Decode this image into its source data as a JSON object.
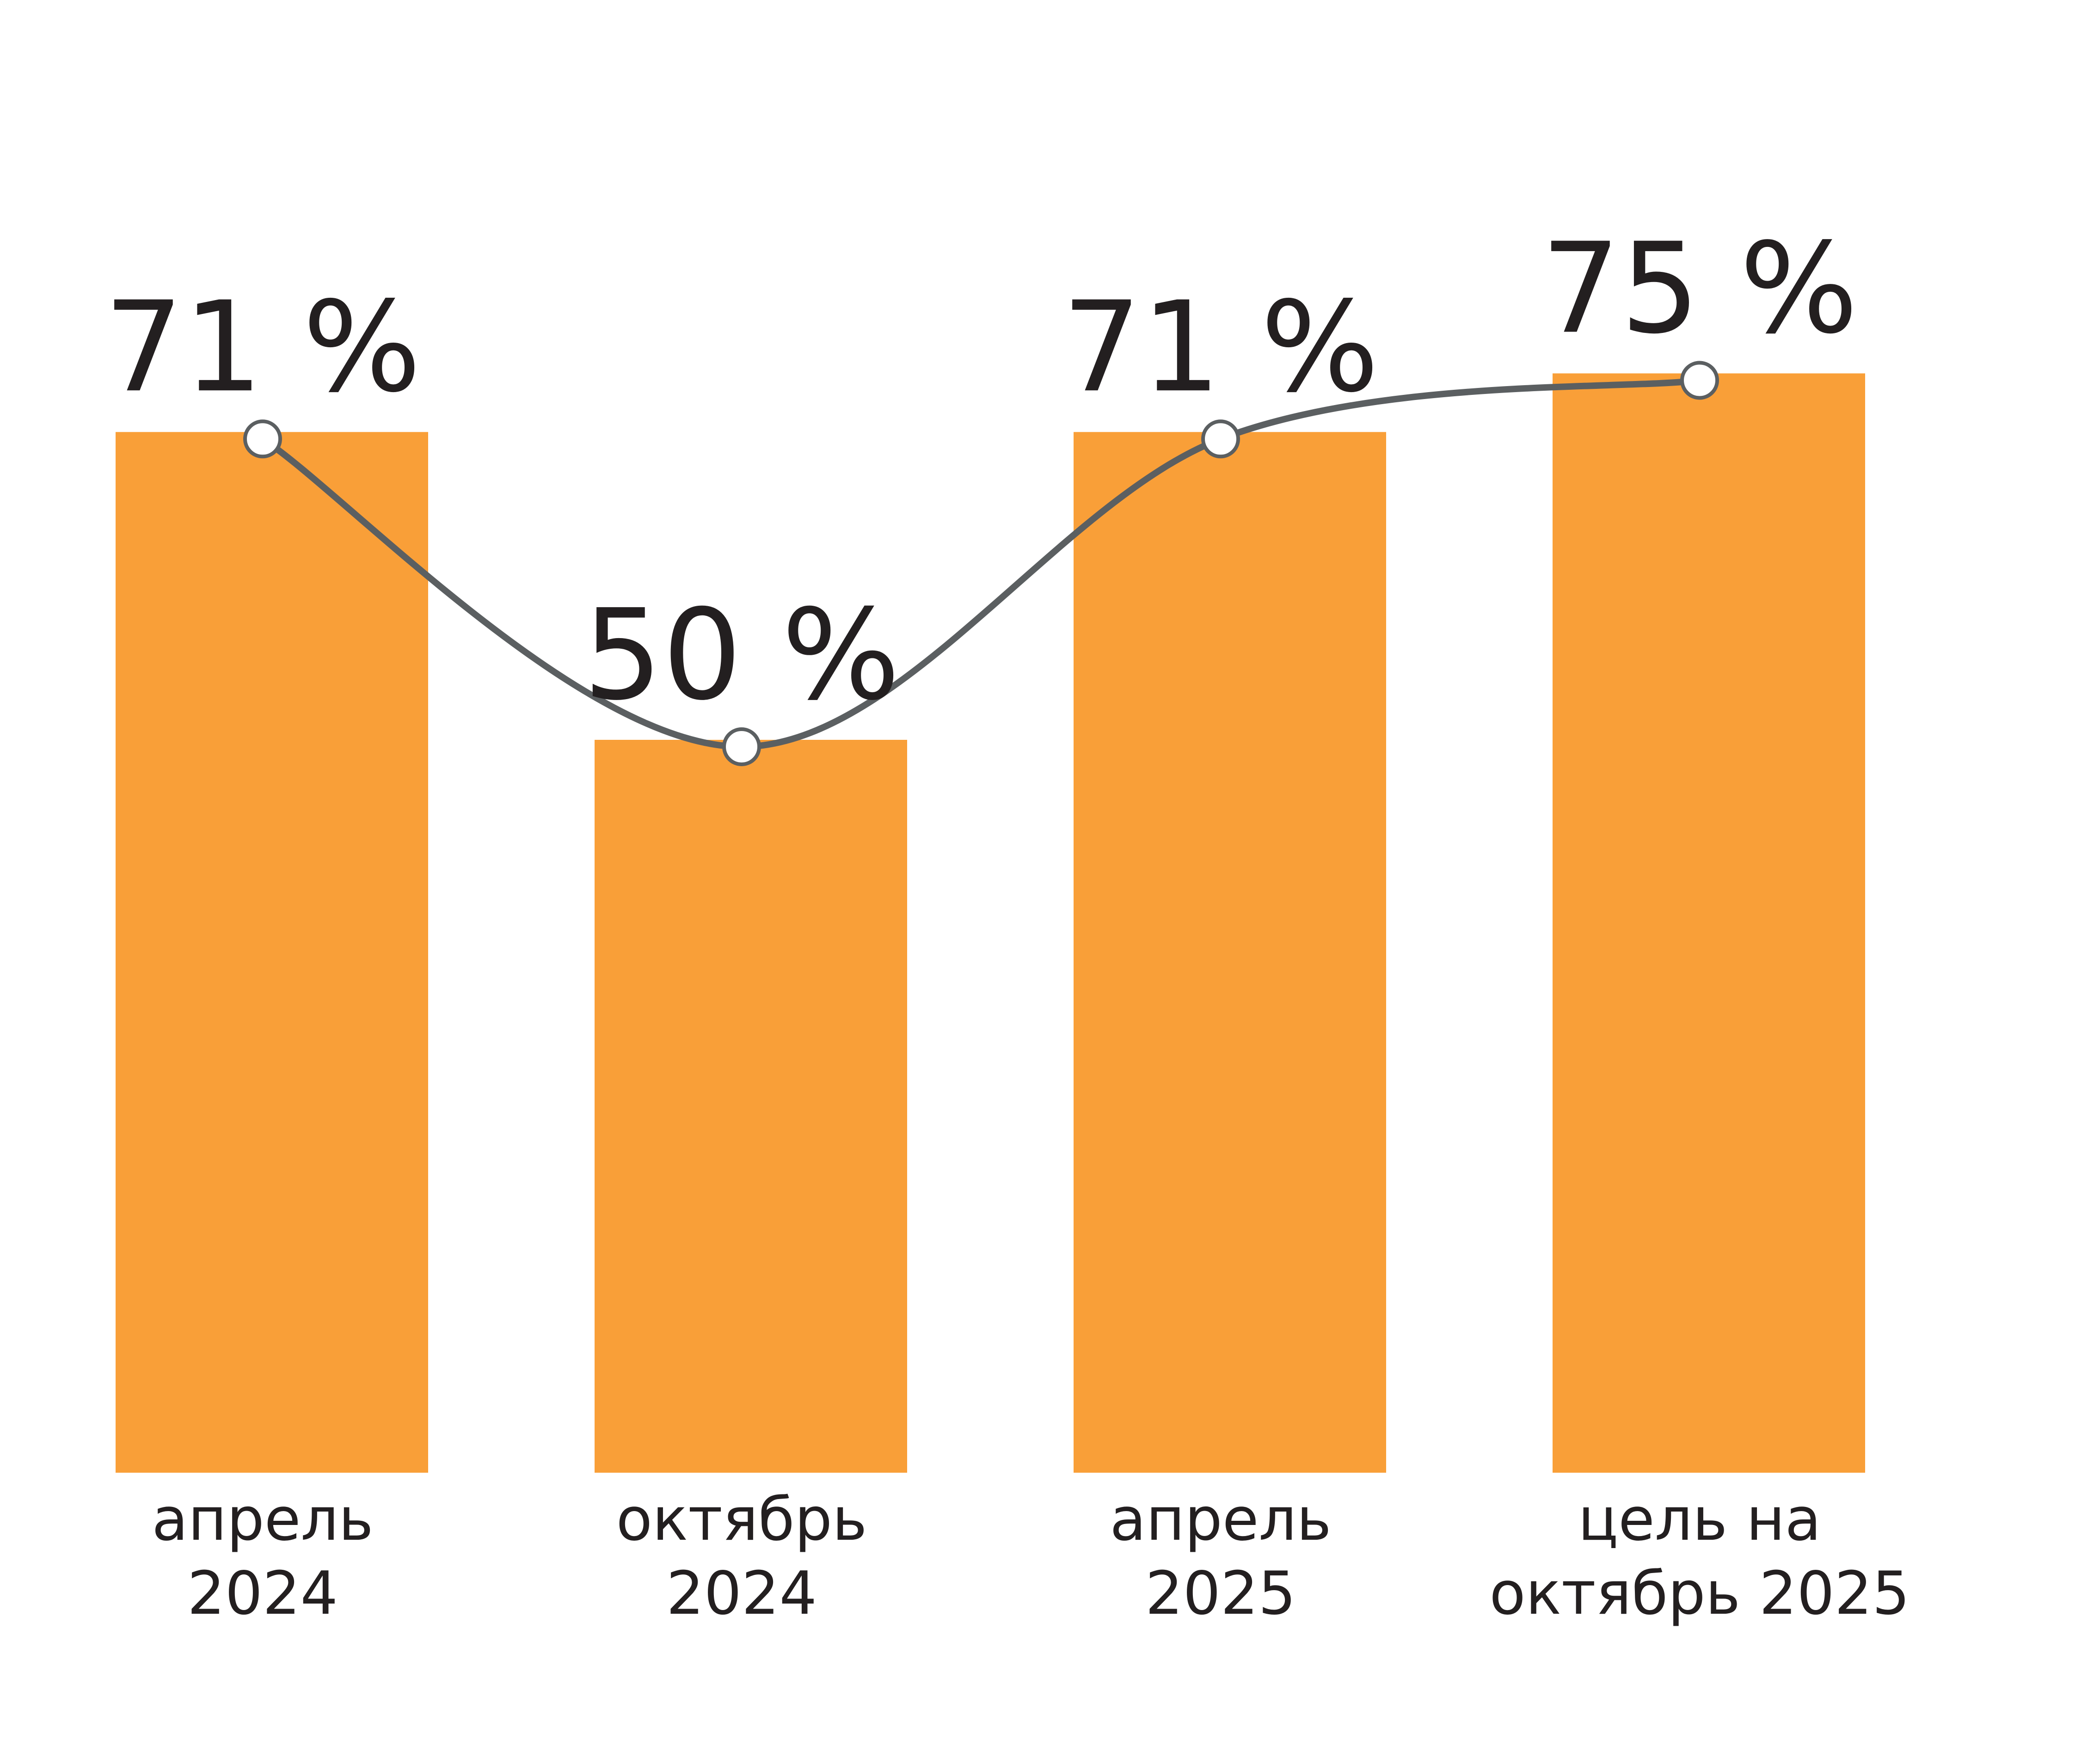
{
  "chart_data": {
    "type": "bar",
    "categories": [
      [
        "апрель",
        "2024"
      ],
      [
        "октябрь",
        "2024"
      ],
      [
        "апрель",
        "2025"
      ],
      [
        "цель на",
        "октябрь 2025"
      ]
    ],
    "values": [
      71,
      50,
      71,
      75
    ],
    "value_labels": [
      "71 %",
      "50 %",
      "71 %",
      "75 %"
    ],
    "ylim": [
      0,
      100
    ],
    "grid": false,
    "overlay_line": true,
    "colors": {
      "bar": "#F99F38",
      "line": "#5B5F61",
      "text": "#231F20",
      "marker_fill": "#FFFFFF"
    }
  }
}
